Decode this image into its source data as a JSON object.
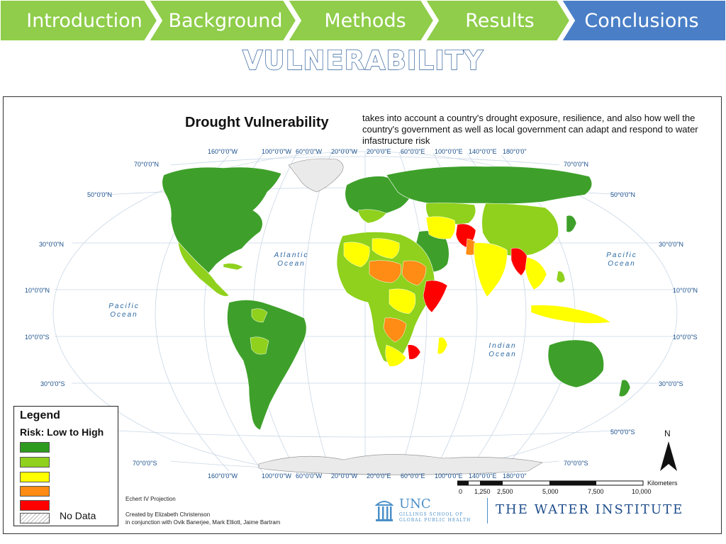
{
  "nav": {
    "tabs": [
      {
        "label": "Introduction",
        "active": false
      },
      {
        "label": "Background",
        "active": false
      },
      {
        "label": "Methods",
        "active": false
      },
      {
        "label": "Results",
        "active": false
      },
      {
        "label": "Conclusions",
        "active": true
      }
    ],
    "inactive_color": "#8fcd4a",
    "active_color": "#4a7fc7"
  },
  "slide_title": "VULNERABILITY",
  "map": {
    "title": "Drought Vulnerability",
    "description": "takes into account a country's drought exposure, resilience, and also how well the country's government as well as local government can adapt and respond to water infastructure risk",
    "top_longitudes": [
      "160°0'0\"W",
      "100°0'0\"W",
      "60°0'0\"W",
      "20°0'0\"W",
      "20°0'0\"E",
      "60°0'0\"E",
      "100°0'0\"E",
      "140°0'0\"E",
      "180°0'0\""
    ],
    "bottom_longitudes": [
      "160°0'0\"W",
      "100°0'0\"W",
      "60°0'0\"W",
      "20°0'0\"W",
      "20°0'0\"E",
      "60°0'0\"E",
      "100°0'0\"E",
      "140°0'0\"E",
      "180°0'0\""
    ],
    "latitudes_left": [
      "70°0'0\"N",
      "50°0'0\"N",
      "30°0'0\"N",
      "10°0'0\"N",
      "10°0'0\"S",
      "30°0'0\"S",
      "70°0'0\"S"
    ],
    "latitudes_right": [
      "70°0'0\"N",
      "50°0'0\"N",
      "30°0'0\"N",
      "10°0'0\"N",
      "10°0'0\"S",
      "30°0'0\"S",
      "50°0'0\"S",
      "70°0'0\"S"
    ],
    "oceans": {
      "atlantic": [
        "Atlantic",
        "Ocean"
      ],
      "pacific_left": [
        "Pacific",
        "Ocean"
      ],
      "pacific_right": [
        "Pacific",
        "Ocean"
      ],
      "indian": [
        "Indian",
        "Ocean"
      ]
    },
    "risk_colors": [
      "#2e9b1f",
      "#8fd11c",
      "#ffff00",
      "#ff8c14",
      "#ff0000"
    ],
    "land_base_color": "#3ea02a",
    "graticule_color": "#c9d7e6"
  },
  "legend": {
    "title": "Legend",
    "subtitle": "Risk: Low to High",
    "swatches": [
      "#2e9b1f",
      "#8fd11c",
      "#ffff00",
      "#ff8c14",
      "#ff0000"
    ],
    "no_data_label": "No Data"
  },
  "north_label": "N",
  "scale": {
    "unit": "Kilometers",
    "ticks": [
      "0",
      "1,250",
      "2,500",
      "5,000",
      "7,500",
      "10,000"
    ]
  },
  "projection": "Echert IV Projection",
  "credits": {
    "line1": "Created by Elizabeth Christenson",
    "line2": "in conjunction with Ovik Banerjee, Mark Elliott, Jaime Bartram"
  },
  "logos": {
    "unc": "UNC",
    "unc_sub1": "GILLINGS SCHOOL OF",
    "unc_sub2": "GLOBAL PUBLIC HEALTH",
    "water_institute": "THE WATER INSTITUTE"
  }
}
